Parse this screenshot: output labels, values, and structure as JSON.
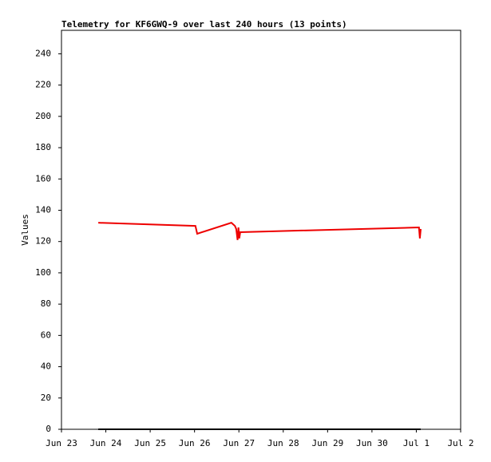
{
  "chart_data": {
    "type": "line",
    "title": "Telemetry for KF6GWQ-9 over last 240 hours (13 points)",
    "y_label": "Values",
    "x": [
      0.83,
      3.02,
      3.06,
      3.83,
      3.91,
      3.94,
      3.97,
      3.99,
      4.01,
      4.03,
      8.06,
      8.08,
      8.1
    ],
    "series": [
      {
        "color": "#ee0000",
        "values": [
          132,
          130,
          125,
          132,
          130,
          128,
          121,
          129,
          122,
          126,
          129,
          122,
          128
        ]
      },
      {
        "color": "#000000",
        "values": [
          0,
          0,
          0,
          0,
          0,
          0,
          0,
          0,
          0,
          0,
          0,
          0,
          0
        ]
      }
    ],
    "xlim": [
      0,
      9
    ],
    "xticks": [
      {
        "value": 0,
        "label": "Jun 23"
      },
      {
        "value": 1,
        "label": "Jun 24"
      },
      {
        "value": 2,
        "label": "Jun 25"
      },
      {
        "value": 3,
        "label": "Jun 26"
      },
      {
        "value": 4,
        "label": "Jun 27"
      },
      {
        "value": 5,
        "label": "Jun 28"
      },
      {
        "value": 6,
        "label": "Jun 29"
      },
      {
        "value": 7,
        "label": "Jun 30"
      },
      {
        "value": 8,
        "label": "Jul 1"
      },
      {
        "value": 9,
        "label": "Jul 2"
      }
    ],
    "ylim": [
      0,
      255
    ],
    "yticks": [
      0,
      20,
      40,
      60,
      80,
      100,
      120,
      140,
      160,
      180,
      200,
      220,
      240
    ]
  }
}
